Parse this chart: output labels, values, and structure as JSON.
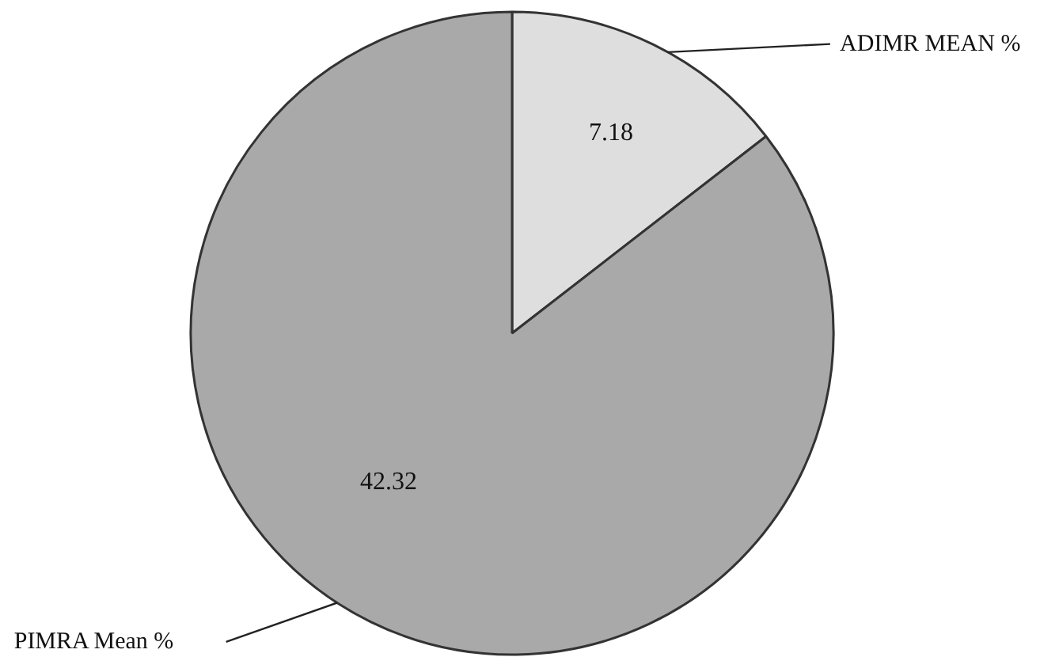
{
  "chart_data": {
    "type": "pie",
    "categories": [
      "ADIMR MEAN %",
      "PIMRA Mean %"
    ],
    "values": [
      7.18,
      42.32
    ],
    "colors": [
      "#dedede",
      "#a9a9a9"
    ],
    "data_labels": true
  }
}
